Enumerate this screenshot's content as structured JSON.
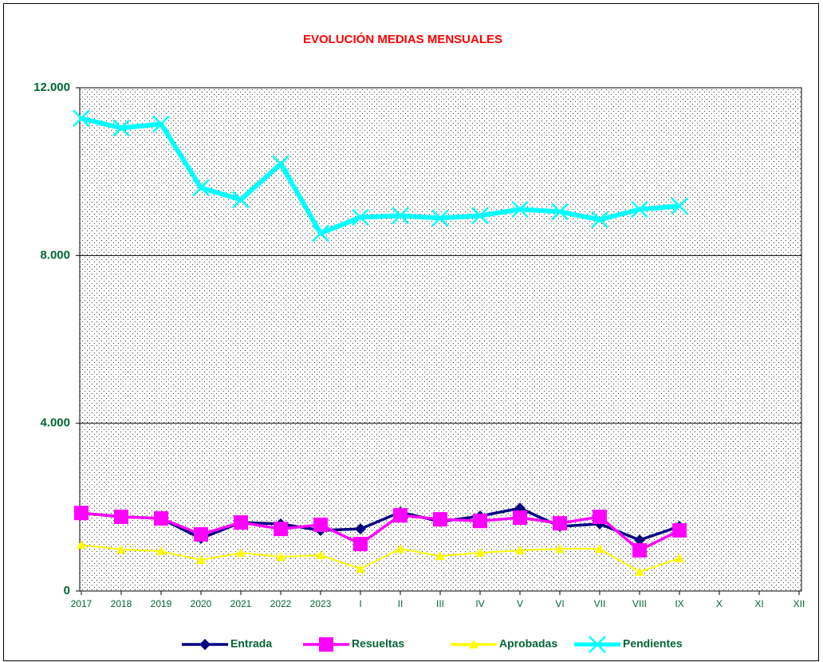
{
  "chart_data": {
    "type": "line",
    "title": "EVOLUCIÓN MEDIAS MENSUALES",
    "categories": [
      "2017",
      "2018",
      "2019",
      "2020",
      "2021",
      "2022",
      "2023",
      "I",
      "II",
      "III",
      "IV",
      "V",
      "VI",
      "VII",
      "VIII",
      "IX",
      "X",
      "XI",
      "XII"
    ],
    "ylim": [
      0,
      12000
    ],
    "yticks": [
      0,
      {
        "value": 4000,
        "label": "4.000"
      },
      {
        "value": 8000,
        "label": "8.000"
      },
      {
        "value": 12000,
        "label": "12.000"
      }
    ],
    "grid": true,
    "legend": "bottom",
    "series": [
      {
        "name": "Entrada",
        "color": "#000080",
        "marker": "diamond",
        "values": [
          1860,
          1770,
          1730,
          1255,
          1635,
          1600,
          1445,
          1480,
          1880,
          1655,
          1785,
          1975,
          1540,
          1600,
          1215,
          1540,
          null,
          null,
          null
        ]
      },
      {
        "name": "Resueltas",
        "color": "#ff00ff",
        "marker": "square",
        "values": [
          1860,
          1770,
          1730,
          1350,
          1635,
          1480,
          1580,
          1120,
          1805,
          1710,
          1670,
          1750,
          1615,
          1770,
          970,
          1445,
          null,
          null,
          null
        ]
      },
      {
        "name": "Aprobadas",
        "color": "#ffff00",
        "marker": "triangle",
        "values": [
          1100,
          990,
          950,
          740,
          910,
          815,
          855,
          530,
          1005,
          835,
          910,
          970,
          1005,
          1005,
          455,
          780,
          null,
          null,
          null
        ]
      },
      {
        "name": "Pendientes",
        "color": "#00ffff",
        "marker": "x",
        "values": [
          11270,
          11040,
          11135,
          9615,
          9330,
          10185,
          8530,
          8910,
          8950,
          8890,
          8950,
          9100,
          9045,
          8855,
          9100,
          9180,
          null,
          null,
          null
        ]
      }
    ]
  }
}
